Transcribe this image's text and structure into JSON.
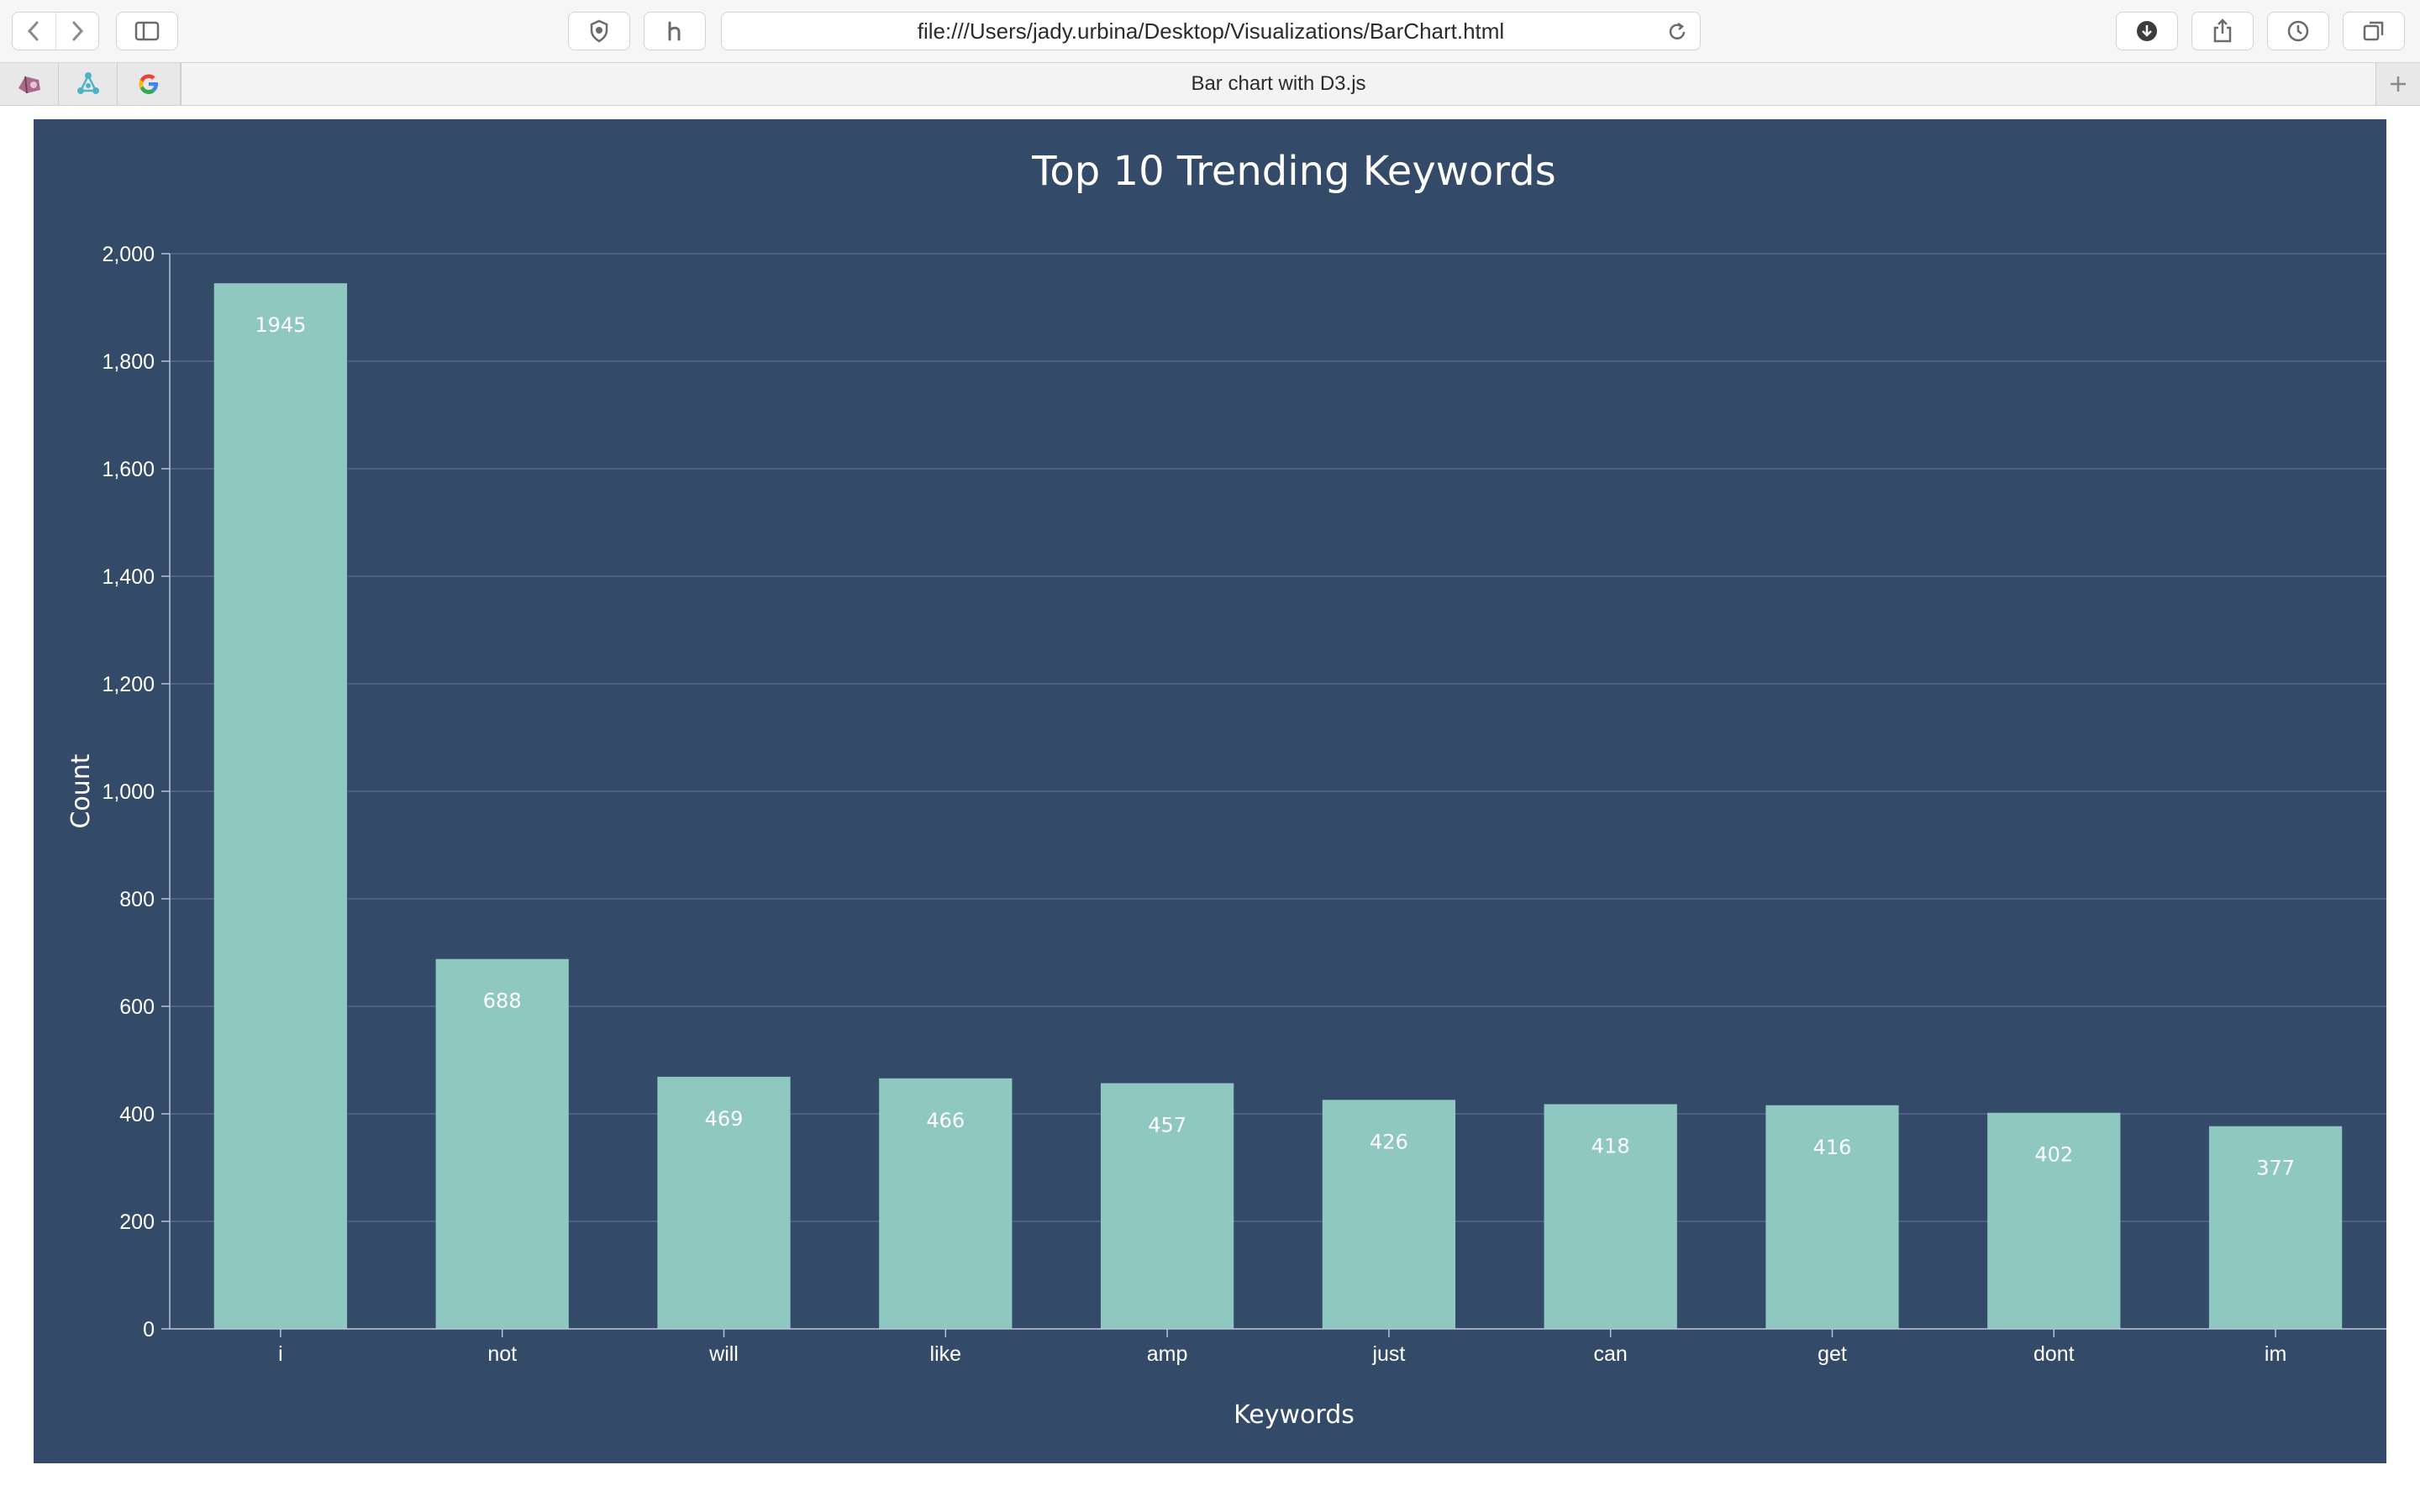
{
  "browser": {
    "url": "file:///Users/jady.urbina/Desktop/Visualizations/BarChart.html",
    "tab_title": "Bar chart with D3.js"
  },
  "colors": {
    "panel_background": "#344a69",
    "bar": "#8fc7c1",
    "gridline": "#56698a",
    "text": "#ffffff"
  },
  "chart_data": {
    "type": "bar",
    "title": "Top 10 Trending Keywords",
    "xlabel": "Keywords",
    "ylabel": "Count",
    "categories": [
      "i",
      "not",
      "will",
      "like",
      "amp",
      "just",
      "can",
      "get",
      "dont",
      "im"
    ],
    "values": [
      1945,
      688,
      469,
      466,
      457,
      426,
      418,
      416,
      402,
      377
    ],
    "value_labels": [
      "1945",
      "688",
      "469",
      "466",
      "457",
      "426",
      "418",
      "416",
      "402",
      "377"
    ],
    "ylim": [
      0,
      2000
    ],
    "yticks": [
      0,
      200,
      400,
      600,
      800,
      1000,
      1200,
      1400,
      1600,
      1800,
      2000
    ],
    "ytick_labels": [
      "0",
      "200",
      "400",
      "600",
      "800",
      "1,000",
      "1,200",
      "1,400",
      "1,600",
      "1,800",
      "2,000"
    ],
    "grid": true,
    "legend": "none"
  }
}
